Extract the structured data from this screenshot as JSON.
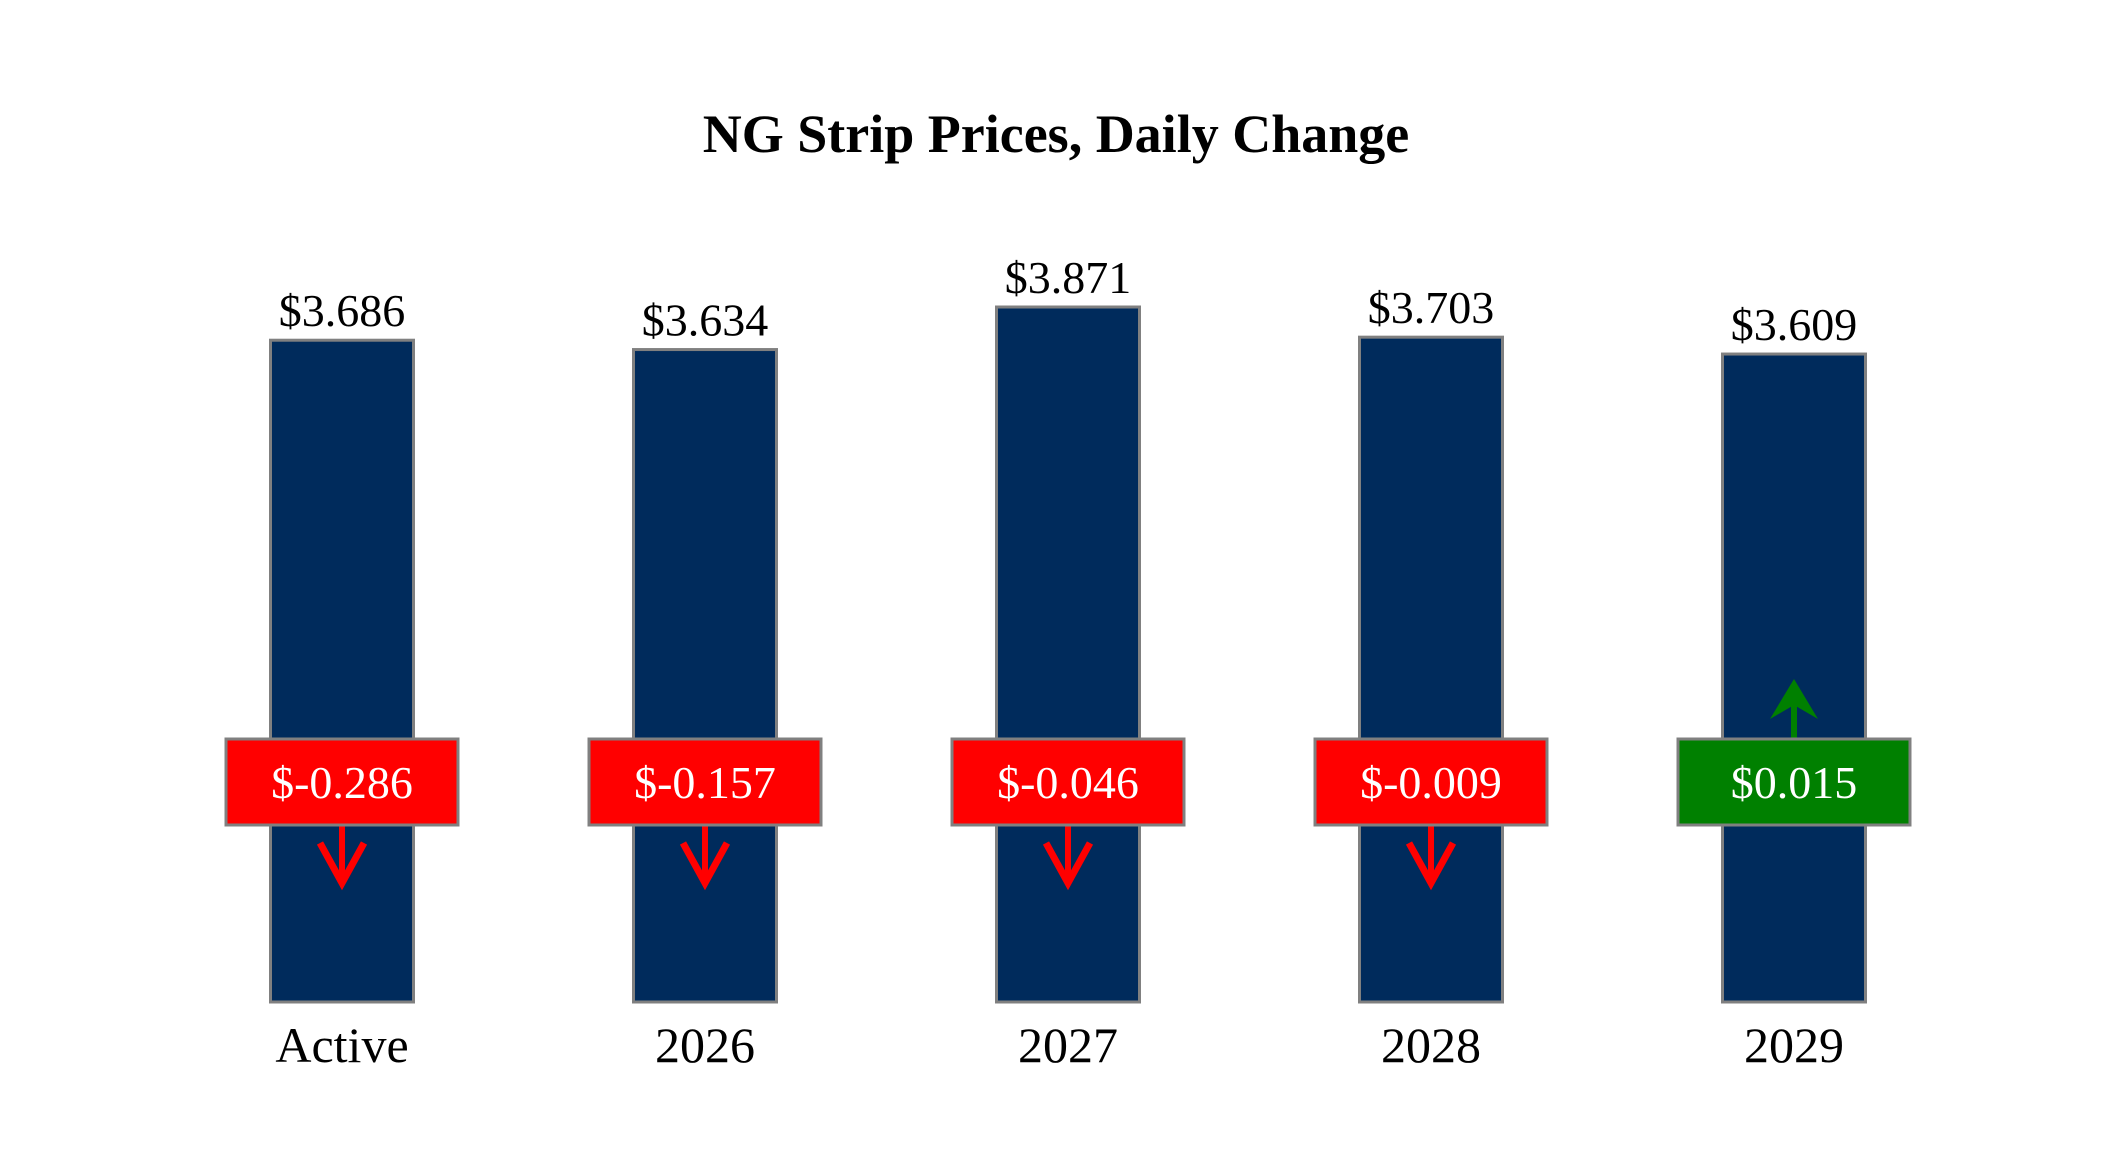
{
  "chart_data": {
    "type": "bar",
    "title": "NG Strip Prices, Daily Change",
    "xlabel": "",
    "ylabel": "",
    "ylim": [
      0,
      3.871
    ],
    "grid": false,
    "legend": "none",
    "categories": [
      "Active",
      "2026",
      "2027",
      "2028",
      "2029"
    ],
    "values": [
      3.686,
      3.634,
      3.871,
      3.703,
      3.609
    ],
    "value_labels": [
      "$3.686",
      "$3.634",
      "$3.871",
      "$3.703",
      "$3.609"
    ],
    "changes": [
      -0.286,
      -0.157,
      -0.046,
      -0.009,
      0.015
    ],
    "change_labels": [
      "$-0.286",
      "$-0.157",
      "$-0.046",
      "$-0.009",
      "$0.015"
    ]
  },
  "colors": {
    "bar": "#002b5c",
    "bar_border": "#808080",
    "negative": "#ff0000",
    "positive": "#008000",
    "label_text": "#ffffff",
    "text": "#000000"
  },
  "icons": {
    "negative": "arrow-down-icon",
    "positive": "arrow-up-icon"
  }
}
